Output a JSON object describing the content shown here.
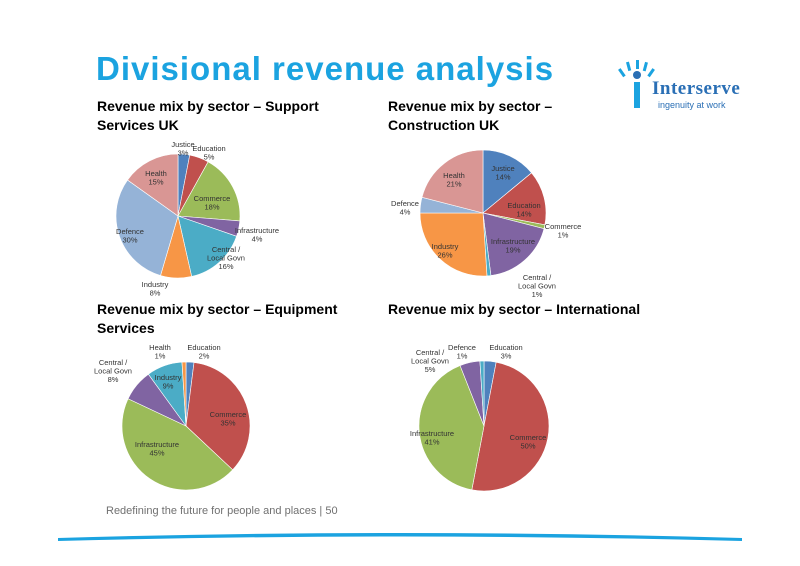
{
  "title": "Divisional revenue analysis",
  "logo": {
    "name": "Interserve",
    "tagline": "ingenuity at work"
  },
  "footer": "Redefining the future for people and places | 50",
  "colors": {
    "title": "#1ba3e0",
    "accent_line": "#1ba3e0"
  },
  "chart_data": [
    {
      "type": "pie",
      "title": "Revenue mix by sector – Support Services UK",
      "labels": [
        "Justice",
        "Education",
        "Commerce",
        "Infrastructure",
        "Central / Local Govn",
        "Industry",
        "Defence",
        "Health"
      ],
      "values": [
        3,
        5,
        18,
        4,
        16,
        8,
        30,
        15
      ],
      "label_text": [
        "3%",
        "5%",
        "18%",
        "4%",
        "16%",
        "8%",
        "30%",
        "15%"
      ],
      "colors": [
        "#4f81bd",
        "#c0504d",
        "#9bbb59",
        "#8064a2",
        "#4bacc6",
        "#f79646",
        "#95b3d7",
        "#d99694"
      ]
    },
    {
      "type": "pie",
      "title": "Revenue mix by sector – Construction UK",
      "labels": [
        "Justice",
        "Education",
        "Commerce",
        "Infrastructure",
        "Central / Local Govn",
        "Industry",
        "Defence",
        "Health"
      ],
      "values": [
        14,
        14,
        1,
        19,
        1,
        26,
        4,
        21
      ],
      "label_text": [
        "14%",
        "14%",
        "1%",
        "19%",
        "1%",
        "26%",
        "4%",
        "21%"
      ],
      "colors": [
        "#4f81bd",
        "#c0504d",
        "#9bbb59",
        "#8064a2",
        "#4bacc6",
        "#f79646",
        "#95b3d7",
        "#d99694"
      ]
    },
    {
      "type": "pie",
      "title": "Revenue mix by sector – Equipment Services",
      "labels": [
        "Education",
        "Commerce",
        "Infrastructure",
        "Central / Local Govn",
        "Industry",
        "Health"
      ],
      "values": [
        2,
        35,
        45,
        8,
        9,
        1
      ],
      "label_text": [
        "2%",
        "35%",
        "45%",
        "8%",
        "9%",
        "1%"
      ],
      "colors": [
        "#4f81bd",
        "#c0504d",
        "#9bbb59",
        "#8064a2",
        "#4bacc6",
        "#f79646"
      ]
    },
    {
      "type": "pie",
      "title": "Revenue mix by sector – International",
      "labels": [
        "Education",
        "Commerce",
        "Infrastructure",
        "Central / Local Govn",
        "Defence"
      ],
      "values": [
        3,
        50,
        41,
        5,
        1
      ],
      "label_text": [
        "3%",
        "50%",
        "41%",
        "5%",
        "1%"
      ],
      "colors": [
        "#4f81bd",
        "#c0504d",
        "#9bbb59",
        "#8064a2",
        "#4bacc6"
      ]
    }
  ]
}
